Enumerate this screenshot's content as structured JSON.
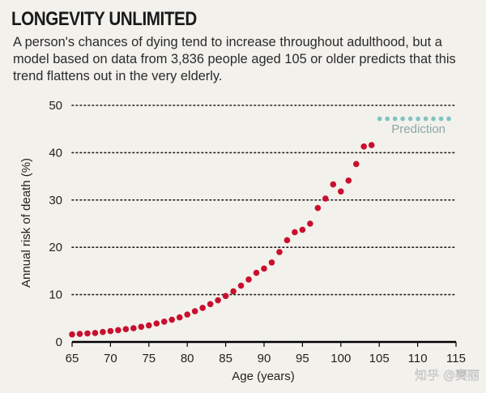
{
  "header": {
    "title": "LONGEVITY UNLIMITED",
    "subtitle": "A person's chances of dying tend to increase throughout adulthood, but a model based on data from 3,836 people aged 105 or older predicts that this trend flattens out in the very elderly."
  },
  "watermark": "知乎 @赛丽",
  "colors": {
    "observed": "#c8102e",
    "prediction": "#7fc4c0",
    "background": "#f2f1ec",
    "grid": "#231f20"
  },
  "chart_data": {
    "type": "scatter",
    "xlabel": "Age (years)",
    "ylabel": "Annual risk of death (%)",
    "xlim": [
      65,
      115
    ],
    "ylim": [
      0,
      50
    ],
    "xticks": [
      65,
      70,
      75,
      80,
      85,
      90,
      95,
      100,
      105,
      110,
      115
    ],
    "yticks": [
      0,
      10,
      20,
      30,
      40,
      50
    ],
    "grid": "horizontal-dotted",
    "legend": {
      "label": "Prediction",
      "placement": "top-right"
    },
    "series": [
      {
        "name": "",
        "x": [
          65,
          66,
          67,
          68,
          69,
          70,
          71,
          72,
          73,
          74,
          75,
          76,
          77,
          78,
          79,
          80,
          81,
          82,
          83,
          84,
          85,
          86,
          87,
          88,
          89,
          90,
          91,
          92,
          93,
          94,
          95,
          96,
          97,
          98,
          99,
          100,
          101,
          102,
          103,
          104
        ],
        "y": [
          1.6,
          1.7,
          1.8,
          1.9,
          2.1,
          2.3,
          2.5,
          2.7,
          2.9,
          3.2,
          3.5,
          3.9,
          4.3,
          4.7,
          5.2,
          5.8,
          6.5,
          7.2,
          8.0,
          8.8,
          9.7,
          10.7,
          11.9,
          13.2,
          14.6,
          15.5,
          16.8,
          19.0,
          21.5,
          23.2,
          23.7,
          25.0,
          28.3,
          30.3,
          33.3,
          31.8,
          34.1,
          37.6,
          41.3,
          41.6
        ]
      },
      {
        "name": "Prediction",
        "x": [
          105,
          106,
          107,
          108,
          109,
          110,
          111,
          112,
          113,
          114
        ],
        "y": [
          47.5,
          47.5,
          47.5,
          47.5,
          47.5,
          47.5,
          47.5,
          47.5,
          47.5,
          47.5
        ]
      }
    ]
  }
}
